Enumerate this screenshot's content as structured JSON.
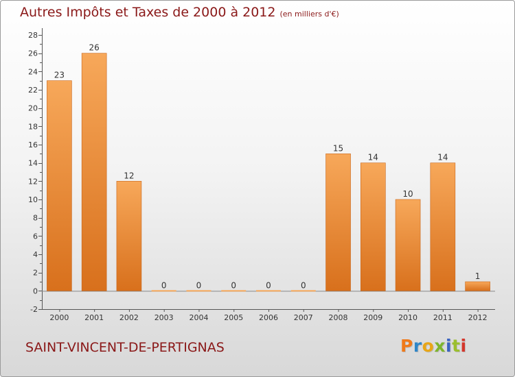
{
  "title": "Autres Impôts et Taxes de 2000 à 2012",
  "title_unit": "(en milliers d'€)",
  "city": "SAINT-VINCENT-DE-PERTIGNAS",
  "logo": {
    "text": "Proxiti",
    "letter_colors": [
      "#f07a1a",
      "#2f86c8",
      "#e8a617",
      "#7db52c",
      "#3a63c0",
      "#9bbf2e",
      "#d4372c"
    ]
  },
  "colors": {
    "bar_light": "#f7a85a",
    "bar_dark": "#d8701c",
    "title": "#8a1818",
    "axis_text": "#333333"
  },
  "chart_data": {
    "type": "bar",
    "categories": [
      "2000",
      "2001",
      "2002",
      "2003",
      "2004",
      "2005",
      "2006",
      "2007",
      "2008",
      "2009",
      "2010",
      "2011",
      "2012"
    ],
    "values": [
      23,
      26,
      12,
      0,
      0,
      0,
      0,
      0,
      15,
      14,
      10,
      14,
      1
    ],
    "ylim": [
      -2,
      28
    ],
    "yticks": [
      -2,
      0,
      2,
      4,
      6,
      8,
      10,
      12,
      14,
      16,
      18,
      20,
      22,
      24,
      26,
      28
    ],
    "grid": false,
    "legend": "none"
  }
}
